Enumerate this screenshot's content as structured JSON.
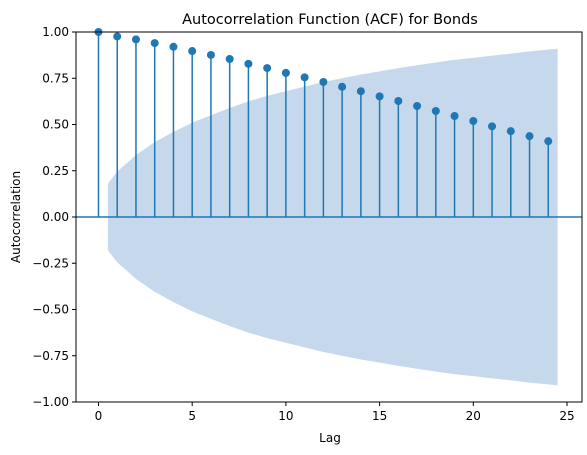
{
  "chart_data": {
    "type": "scatter",
    "title": "Autocorrelation Function (ACF) for Bonds",
    "xlabel": "Lag",
    "ylabel": "Autocorrelation",
    "xlim": [
      -1.2,
      25.8
    ],
    "ylim": [
      -1.0,
      1.0
    ],
    "xticks": [
      "0",
      "5",
      "10",
      "15",
      "20",
      "25"
    ],
    "yticks": [
      "−1.00",
      "−0.75",
      "−0.50",
      "−0.25",
      "0.00",
      "0.25",
      "0.50",
      "0.75",
      "1.00"
    ],
    "grid": false,
    "series": [
      {
        "x": [
          0,
          1,
          2,
          3,
          4,
          5,
          6,
          7,
          8,
          9,
          10,
          11,
          12,
          13,
          14,
          15,
          16,
          17,
          18,
          19,
          20,
          21,
          22,
          23,
          24
        ],
        "values": [
          1.0,
          0.976,
          0.96,
          0.94,
          0.92,
          0.897,
          0.876,
          0.854,
          0.828,
          0.805,
          0.779,
          0.755,
          0.73,
          0.704,
          0.68,
          0.652,
          0.627,
          0.6,
          0.573,
          0.546,
          0.519,
          0.49,
          0.464,
          0.437,
          0.41
        ]
      }
    ],
    "confidence_band": {
      "x": [
        0.5,
        1,
        2,
        3,
        4,
        5,
        6,
        7,
        8,
        9,
        10,
        11,
        12,
        13,
        14,
        15,
        16,
        17,
        18,
        19,
        20,
        21,
        22,
        23,
        24,
        24.5
      ],
      "upper": [
        0.18,
        0.245,
        0.335,
        0.405,
        0.46,
        0.51,
        0.55,
        0.59,
        0.625,
        0.655,
        0.68,
        0.705,
        0.73,
        0.75,
        0.77,
        0.787,
        0.805,
        0.82,
        0.835,
        0.85,
        0.86,
        0.872,
        0.883,
        0.895,
        0.905,
        0.91
      ]
    },
    "colors": {
      "stem": "#1f77b4",
      "marker": "#1f77b4",
      "band": "#c6d9ec",
      "zero_line": "#1f77b4"
    }
  }
}
